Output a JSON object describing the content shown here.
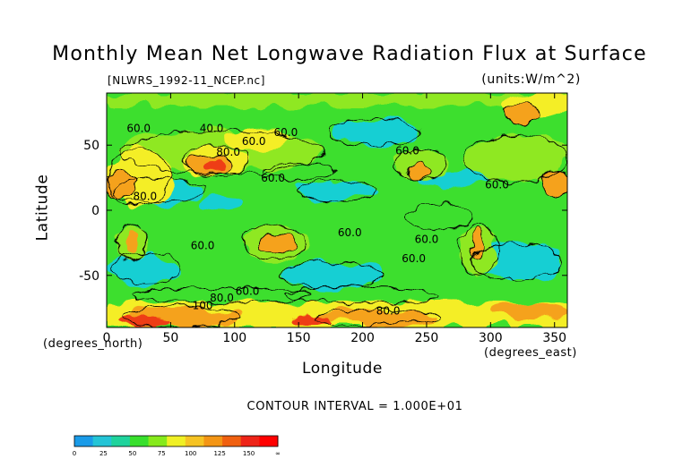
{
  "chart_data": {
    "type": "heatmap",
    "title": "Monthly Mean Net Longwave Radiation Flux at Surface",
    "subtitle_left": "[NLWRS_1992-11_NCEP.nc]",
    "subtitle_right": "(units:W/m^2)",
    "xlabel": "Longitude",
    "ylabel": "Latitude",
    "xlabel_unit": "(degrees_east)",
    "ylabel_unit": "(degrees_north)",
    "xlim": [
      0,
      360
    ],
    "ylim": [
      -90,
      90
    ],
    "x_ticks": [
      0,
      50,
      100,
      150,
      200,
      250,
      300,
      350
    ],
    "y_ticks": [
      -50,
      0,
      50
    ],
    "contour_interval_text": "CONTOUR INTERVAL = 1.000E+01",
    "contour_labels": [
      {
        "text": "40.0",
        "lon": 82,
        "lat": 60
      },
      {
        "text": "60.0",
        "lon": 140,
        "lat": 57
      },
      {
        "text": "60.0",
        "lon": 115,
        "lat": 50
      },
      {
        "text": "80.0",
        "lon": 95,
        "lat": 42
      },
      {
        "text": "60.0",
        "lon": 130,
        "lat": 22
      },
      {
        "text": "80.0",
        "lon": 30,
        "lat": 8
      },
      {
        "text": "60.0",
        "lon": 235,
        "lat": 43
      },
      {
        "text": "60.0",
        "lon": 305,
        "lat": 17
      },
      {
        "text": "60.0",
        "lon": 75,
        "lat": -30
      },
      {
        "text": "60.0",
        "lon": 190,
        "lat": -20
      },
      {
        "text": "60.0",
        "lon": 250,
        "lat": -25
      },
      {
        "text": "60.0",
        "lon": 240,
        "lat": -40
      },
      {
        "text": "60.0",
        "lon": 110,
        "lat": -65
      },
      {
        "text": "80.0",
        "lon": 90,
        "lat": -70
      },
      {
        "text": "100",
        "lon": 75,
        "lat": -76
      },
      {
        "text": "80.0",
        "lon": 220,
        "lat": -80
      },
      {
        "text": "60.0",
        "lon": 25,
        "lat": 60
      }
    ],
    "colorbar": {
      "levels": [
        "0",
        "25",
        "50",
        "75",
        "100",
        "125",
        "150",
        "∞"
      ],
      "colors": [
        "#1a9be8",
        "#24c4d6",
        "#1fd39c",
        "#38df2d",
        "#86ea1c",
        "#f0f025",
        "#f6c323",
        "#f39515",
        "#f06010",
        "#ee2418",
        "#ff0000"
      ]
    },
    "palette": {
      "low": "#19cfd3",
      "mid": "#3ddf2e",
      "midhigh": "#8fe820",
      "high": "#f4ee26",
      "higher": "#f5a21a",
      "highest": "#ee3d12"
    }
  }
}
